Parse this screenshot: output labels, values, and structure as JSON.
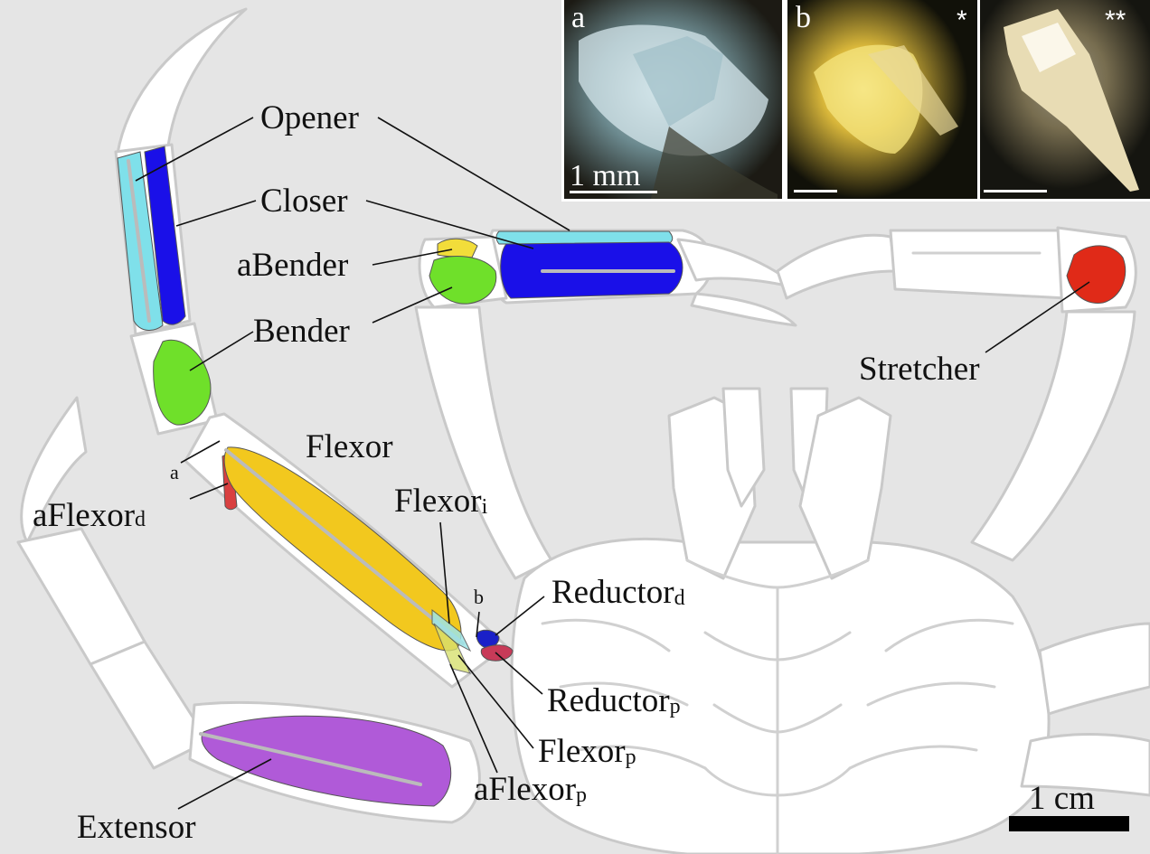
{
  "labels": {
    "opener": "Opener",
    "closer": "Closer",
    "abender": "aBender",
    "bender": "Bender",
    "stretcher": "Stretcher",
    "flexor": "Flexor",
    "a_marker": "a",
    "aflexor_d_main": "aFlexor",
    "aflexor_d_sub": "d",
    "flexor_i_main": "Flexor",
    "flexor_i_sub": "i",
    "b_marker": "b",
    "reductor_d_main": "Reductor",
    "reductor_d_sub": "d",
    "reductor_p_main": "Reductor",
    "reductor_p_sub": "p",
    "flexor_p_main": "Flexor",
    "flexor_p_sub": "p",
    "aflexor_p_main": "aFlexor",
    "aflexor_p_sub": "p",
    "extensor": "Extensor"
  },
  "scale_bar": {
    "label": "1 cm"
  },
  "inset": {
    "panel_a": {
      "letter": "a",
      "scale_label": "1 mm"
    },
    "panel_b": {
      "letter": "b",
      "left_mark": "*",
      "right_mark": "**"
    }
  },
  "colors": {
    "opener": "#7fe0ea",
    "closer": "#1a10e8",
    "abender": "#f2dd3a",
    "bender": "#6fe02a",
    "stretcher": "#e02a18",
    "flexor": "#f2c81e",
    "aflexor_d": "#d94040",
    "extensor": "#b05ad8",
    "reductor_d": "#1a20c8",
    "reductor_p": "#c83a58"
  }
}
